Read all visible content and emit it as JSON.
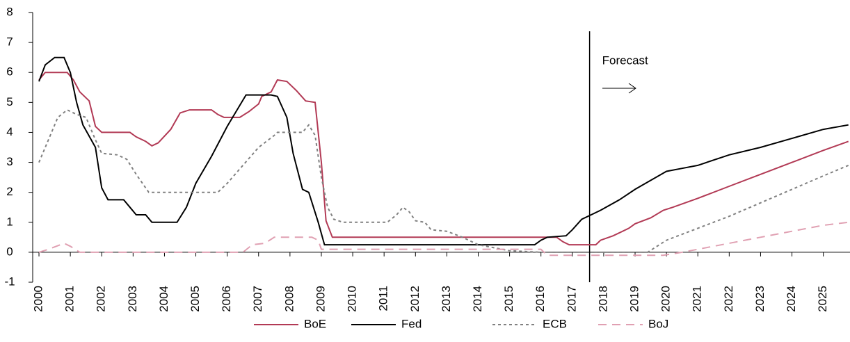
{
  "chart_data": {
    "type": "line",
    "xlim": [
      1999.8,
      2025.85
    ],
    "ylim": [
      -1,
      8
    ],
    "xticks": [
      2000,
      2001,
      2002,
      2003,
      2004,
      2005,
      2006,
      2007,
      2008,
      2009,
      2010,
      2011,
      2012,
      2013,
      2014,
      2015,
      2016,
      2017,
      2018,
      2019,
      2020,
      2021,
      2022,
      2023,
      2024,
      2025
    ],
    "yticks": [
      -1,
      0,
      1,
      2,
      3,
      4,
      5,
      6,
      7,
      8
    ],
    "grid": false,
    "legend": "bottom",
    "annotation": {
      "text": "Forecast",
      "x": 2017.55
    },
    "series": [
      {
        "name": "BoE",
        "color": "#b23a55",
        "dash": "none",
        "x": [
          2000,
          2000.2,
          2000.9,
          2001.1,
          2001.3,
          2001.6,
          2001.8,
          2002.0,
          2002.9,
          2003.1,
          2003.4,
          2003.6,
          2003.8,
          2004.2,
          2004.5,
          2004.8,
          2005.5,
          2005.7,
          2005.9,
          2006.4,
          2006.7,
          2007.0,
          2007.1,
          2007.4,
          2007.6,
          2007.9,
          2008.2,
          2008.5,
          2008.8,
          2009.0,
          2009.15,
          2009.35,
          2016.5,
          2016.7,
          2016.9,
          2017.75,
          2017.9,
          2018.3,
          2018.8,
          2019.0,
          2019.5,
          2019.9,
          2020.2,
          2021,
          2022,
          2023,
          2024,
          2025,
          2025.8
        ],
        "values": [
          5.75,
          6.0,
          6.0,
          5.75,
          5.35,
          5.05,
          4.2,
          4.0,
          4.0,
          3.85,
          3.7,
          3.55,
          3.65,
          4.1,
          4.65,
          4.75,
          4.75,
          4.6,
          4.5,
          4.5,
          4.7,
          4.95,
          5.2,
          5.35,
          5.75,
          5.7,
          5.4,
          5.05,
          5.0,
          3.0,
          1.05,
          0.5,
          0.5,
          0.35,
          0.25,
          0.25,
          0.4,
          0.55,
          0.8,
          0.95,
          1.15,
          1.4,
          1.5,
          1.8,
          2.2,
          2.6,
          3.0,
          3.4,
          3.7
        ]
      },
      {
        "name": "Fed",
        "color": "#000000",
        "dash": "none",
        "x": [
          2000,
          2000.2,
          2000.5,
          2000.8,
          2001.0,
          2001.2,
          2001.4,
          2001.8,
          2002.0,
          2002.2,
          2002.7,
          2002.9,
          2003.1,
          2003.4,
          2003.6,
          2004.4,
          2004.7,
          2005,
          2005.5,
          2006,
          2006.4,
          2006.6,
          2007.4,
          2007.6,
          2007.9,
          2008.1,
          2008.4,
          2008.6,
          2008.9,
          2009.1,
          2015.8,
          2016.0,
          2016.2,
          2016.8,
          2017.0,
          2017.3,
          2017.6,
          2017.9,
          2018.5,
          2019,
          2019.5,
          2020,
          2020.5,
          2021,
          2022,
          2023,
          2024,
          2025,
          2025.8
        ],
        "values": [
          5.7,
          6.25,
          6.5,
          6.5,
          6.0,
          5.0,
          4.25,
          3.5,
          2.15,
          1.75,
          1.75,
          1.5,
          1.25,
          1.25,
          1.0,
          1.0,
          1.5,
          2.3,
          3.2,
          4.2,
          4.9,
          5.25,
          5.25,
          5.2,
          4.5,
          3.3,
          2.1,
          2.0,
          1.0,
          0.25,
          0.25,
          0.4,
          0.5,
          0.55,
          0.75,
          1.1,
          1.25,
          1.4,
          1.75,
          2.1,
          2.4,
          2.7,
          2.8,
          2.9,
          3.25,
          3.5,
          3.8,
          4.1,
          4.25
        ]
      },
      {
        "name": "ECB",
        "color": "#808080",
        "dash": "4 4",
        "x": [
          2000,
          2000.3,
          2000.6,
          2000.9,
          2001.2,
          2001.5,
          2001.8,
          2002,
          2002.5,
          2002.8,
          2003.1,
          2003.5,
          2005.7,
          2006.0,
          2006.5,
          2007.0,
          2007.5,
          2007.6,
          2008.4,
          2008.6,
          2008.8,
          2009.0,
          2009.2,
          2009.4,
          2009.7,
          2011.1,
          2011.4,
          2011.6,
          2011.8,
          2012.0,
          2012.3,
          2012.5,
          2013.0,
          2013.5,
          2014.0,
          2014.5,
          2015,
          2016,
          2019.4,
          2020,
          2021,
          2022,
          2023,
          2024,
          2025,
          2025.8
        ],
        "values": [
          3.0,
          3.75,
          4.5,
          4.75,
          4.6,
          4.5,
          3.75,
          3.3,
          3.25,
          3.1,
          2.6,
          2.0,
          2.0,
          2.3,
          2.9,
          3.5,
          3.9,
          4.0,
          4.0,
          4.25,
          3.9,
          2.5,
          1.5,
          1.1,
          1.0,
          1.0,
          1.25,
          1.5,
          1.35,
          1.05,
          1.0,
          0.75,
          0.7,
          0.5,
          0.25,
          0.15,
          0.05,
          0.0,
          0.0,
          0.4,
          0.8,
          1.2,
          1.65,
          2.1,
          2.55,
          2.9
        ]
      },
      {
        "name": "BoJ",
        "color": "#e0a0b2",
        "dash": "12 8",
        "x": [
          2000,
          2000.3,
          2000.8,
          2001.0,
          2001.3,
          2006.5,
          2006.8,
          2007.2,
          2007.5,
          2008.7,
          2008.9,
          2009.0,
          2016.0,
          2016.2,
          2019.9,
          2020.5,
          2021,
          2022,
          2023,
          2024,
          2025,
          2025.8
        ],
        "values": [
          0.0,
          0.1,
          0.3,
          0.2,
          0.0,
          0.0,
          0.25,
          0.3,
          0.5,
          0.5,
          0.4,
          0.1,
          0.1,
          -0.1,
          -0.1,
          0.0,
          0.1,
          0.3,
          0.5,
          0.7,
          0.9,
          1.0
        ]
      }
    ]
  }
}
